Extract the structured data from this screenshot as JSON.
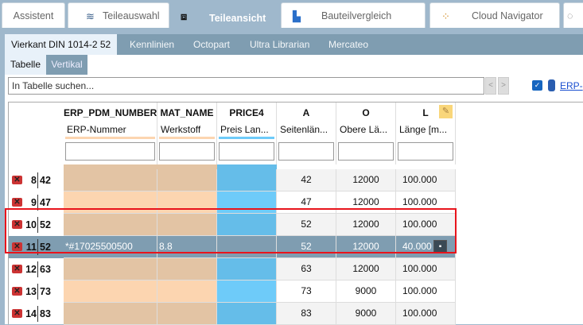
{
  "tabs": [
    {
      "label": "Assistent"
    },
    {
      "label": "Teileauswahl",
      "icon": "stack-icon"
    },
    {
      "label": "Teileansicht",
      "icon": "cubes-icon",
      "active": true
    },
    {
      "label": "Bauteilvergleich",
      "icon": "compare-icon"
    },
    {
      "label": "Cloud Navigator",
      "icon": "network-icon"
    }
  ],
  "subtabs": [
    "Vierkant DIN 1014-2 52",
    "Kennlinien",
    "Octopart",
    "Ultra Librarian",
    "Mercateo"
  ],
  "viewtabs": [
    "Tabelle",
    "Vertikal"
  ],
  "search": {
    "placeholder": "In Tabelle suchen...",
    "prev": "<",
    "next": ">"
  },
  "erp_link": "ERP-",
  "columns": [
    {
      "name": "ERP_PDM_NUMBER",
      "desc": "ERP-Nummer",
      "color": "#fcd5b0"
    },
    {
      "name": "MAT_NAME",
      "desc": "Werkstoff",
      "color": "#fcd5b0"
    },
    {
      "name": "PRICE4",
      "desc": "Preis Lan...",
      "color": "#6ecbf9"
    },
    {
      "name": "A",
      "desc": "Seitenlän...",
      "color": ""
    },
    {
      "name": "O",
      "desc": "Obere Lä...",
      "color": ""
    },
    {
      "name": "L",
      "desc": "Länge [m...",
      "color": ""
    }
  ],
  "rows": [
    {
      "idx": "8",
      "val": "42",
      "erp": "",
      "mat": "",
      "price": "",
      "a": "42",
      "o": "12000",
      "l": "100.000"
    },
    {
      "idx": "9",
      "val": "47",
      "erp": "",
      "mat": "",
      "price": "",
      "a": "47",
      "o": "12000",
      "l": "100.000"
    },
    {
      "idx": "10",
      "val": "52",
      "erp": "",
      "mat": "",
      "price": "",
      "a": "52",
      "o": "12000",
      "l": "100.000"
    },
    {
      "idx": "11",
      "val": "52",
      "erp": "*#17025500500",
      "mat": "8.8",
      "price": "",
      "a": "52",
      "o": "12000",
      "l": "40.000",
      "selected": true,
      "locked": true
    },
    {
      "idx": "12",
      "val": "63",
      "erp": "",
      "mat": "",
      "price": "",
      "a": "63",
      "o": "12000",
      "l": "100.000"
    },
    {
      "idx": "13",
      "val": "73",
      "erp": "",
      "mat": "",
      "price": "",
      "a": "73",
      "o": "9000",
      "l": "100.000"
    },
    {
      "idx": "14",
      "val": "83",
      "erp": "",
      "mat": "",
      "price": "",
      "a": "83",
      "o": "9000",
      "l": "100.000"
    }
  ]
}
